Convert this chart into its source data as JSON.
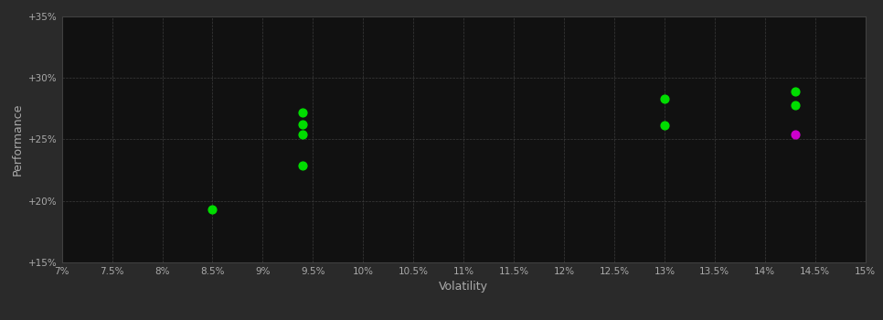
{
  "background_color": "#2a2a2a",
  "plot_bg_color": "#111111",
  "grid_color": "#404040",
  "text_color": "#aaaaaa",
  "xlabel": "Volatility",
  "ylabel": "Performance",
  "xlim": [
    0.07,
    0.15
  ],
  "ylim": [
    0.15,
    0.35
  ],
  "xtick_values": [
    0.07,
    0.075,
    0.08,
    0.085,
    0.09,
    0.095,
    0.1,
    0.105,
    0.11,
    0.115,
    0.12,
    0.125,
    0.13,
    0.135,
    0.14,
    0.145,
    0.15
  ],
  "xtick_labels": [
    "7%",
    "7.5%",
    "8%",
    "8.5%",
    "9%",
    "9.5%",
    "10%",
    "10.5%",
    "11%",
    "11.5%",
    "12%",
    "12.5%",
    "13%",
    "13.5%",
    "14%",
    "14.5%",
    "15%"
  ],
  "ytick_values": [
    0.15,
    0.2,
    0.25,
    0.3,
    0.35
  ],
  "ytick_labels": [
    "+15%",
    "+20%",
    "+25%",
    "+30%",
    "+35%"
  ],
  "green_points": [
    [
      0.085,
      0.193
    ],
    [
      0.094,
      0.272
    ],
    [
      0.094,
      0.262
    ],
    [
      0.094,
      0.254
    ],
    [
      0.094,
      0.229
    ],
    [
      0.13,
      0.283
    ],
    [
      0.13,
      0.261
    ],
    [
      0.143,
      0.289
    ],
    [
      0.143,
      0.278
    ]
  ],
  "magenta_points": [
    [
      0.143,
      0.254
    ]
  ],
  "point_size": 40,
  "green_color": "#00dd00",
  "magenta_color": "#cc00cc"
}
